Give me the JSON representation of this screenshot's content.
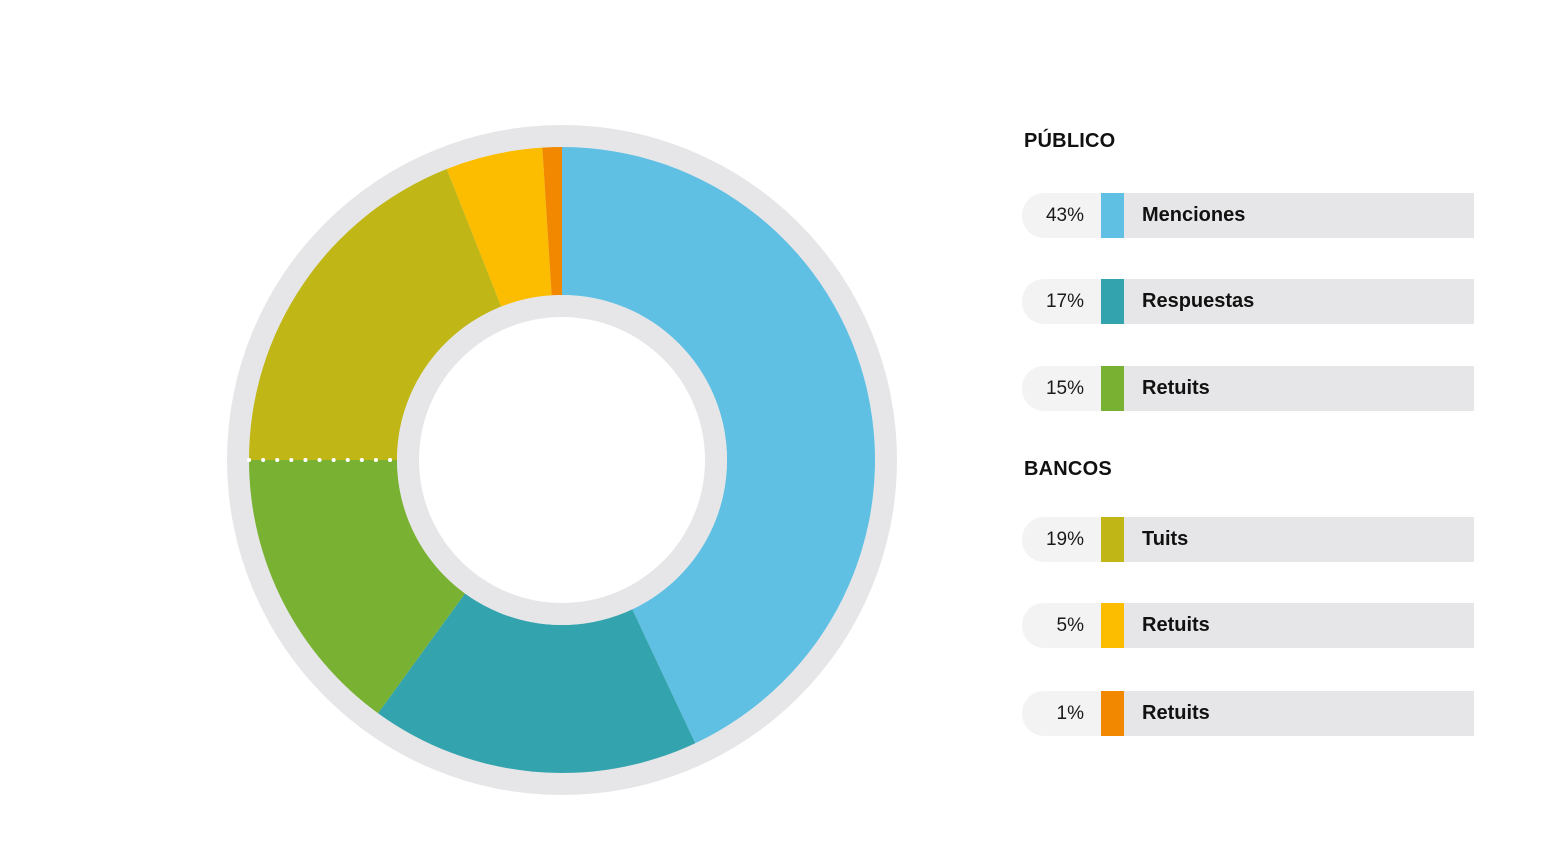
{
  "chart_data": {
    "type": "pie",
    "categories": [
      "Menciones",
      "Respuestas",
      "Retuits",
      "Tuits",
      "Retuits",
      "Retuits"
    ],
    "values": [
      43,
      17,
      15,
      19,
      5,
      1
    ],
    "value_labels": [
      "43%",
      "17%",
      "15%",
      "19%",
      "5%",
      "1%"
    ],
    "colors": [
      "#5fc0e4",
      "#33a4ae",
      "#79b233",
      "#c0b716",
      "#fcbd00",
      "#f28800"
    ],
    "groups": [
      {
        "title": "PÚBLICO",
        "items": [
          0,
          1,
          2
        ]
      },
      {
        "title": "BANCOS",
        "items": [
          3,
          4,
          5
        ]
      }
    ],
    "donut": true,
    "ring_color": "#e6e6e8",
    "legend": "right"
  },
  "legend": {
    "groups": [
      {
        "title": "PÚBLICO",
        "items": [
          {
            "pct": "43%",
            "label": "Menciones",
            "color": "#5fc0e4"
          },
          {
            "pct": "17%",
            "label": "Respuestas",
            "color": "#33a4ae"
          },
          {
            "pct": "15%",
            "label": "Retuits",
            "color": "#79b233"
          }
        ]
      },
      {
        "title": "BANCOS",
        "items": [
          {
            "pct": "19%",
            "label": "Tuits",
            "color": "#c0b716"
          },
          {
            "pct": "5%",
            "label": "Retuits",
            "color": "#fcbd00"
          },
          {
            "pct": "1%",
            "label": "Retuits",
            "color": "#f28800"
          }
        ]
      }
    ]
  }
}
